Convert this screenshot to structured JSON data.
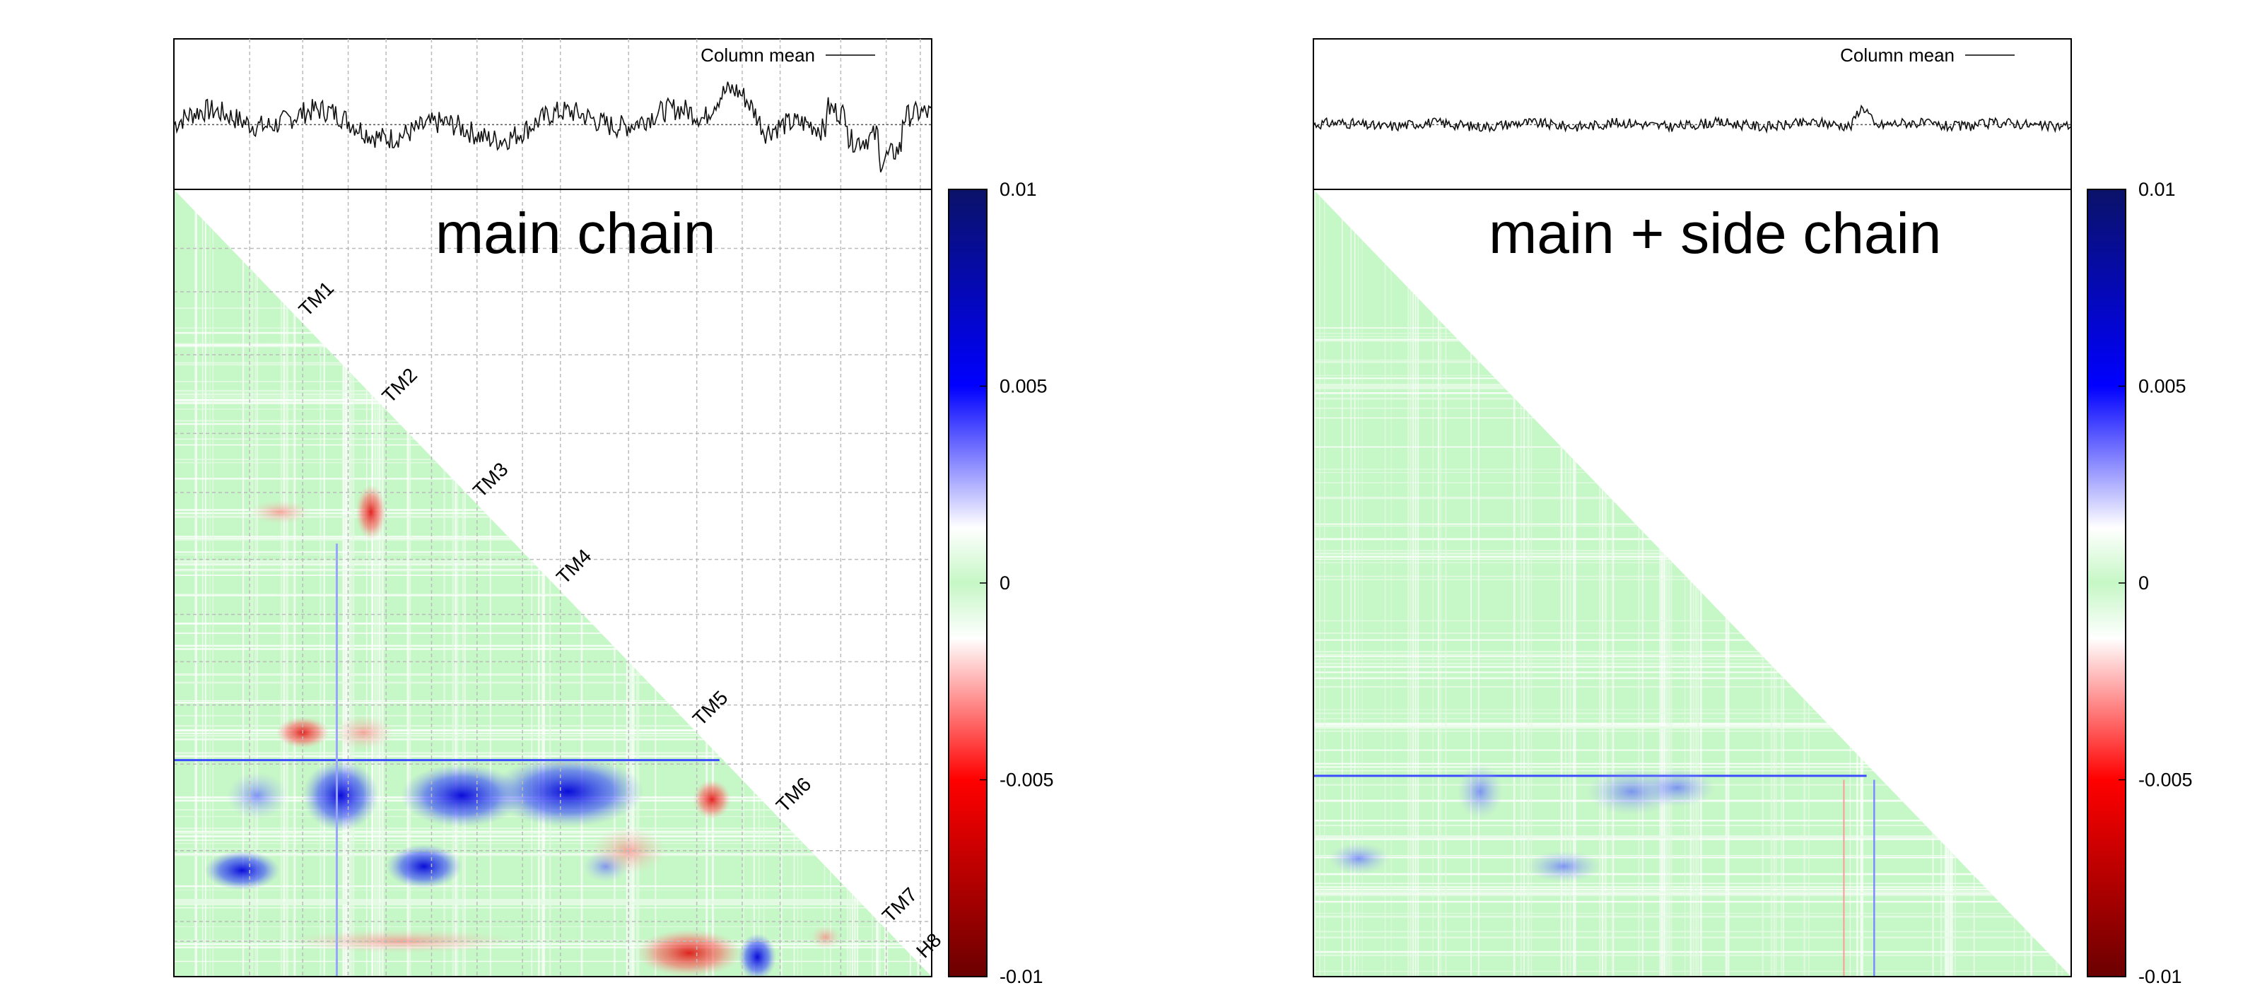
{
  "figure": {
    "panels": [
      {
        "title": "main chain",
        "legend_label": "Column mean",
        "show_helix_labels": true,
        "grid": true
      },
      {
        "title": "main + side chain",
        "legend_label": "Column mean",
        "show_helix_labels": false,
        "grid": false
      }
    ],
    "helix_labels": [
      "TM1",
      "TM2",
      "TM3",
      "TM4",
      "TM5",
      "TM6",
      "TM7",
      "H8"
    ],
    "colorbar": {
      "range": [
        -0.01,
        0.01
      ],
      "tick_labels": [
        "0.01",
        "0.005",
        "0",
        "-0.005",
        "-0.01"
      ],
      "colors": {
        "max": "#0a1268",
        "high": "#0000ff",
        "zero": "#c6f7c6",
        "near_zero_neg": "#ffffff",
        "low": "#ff0000",
        "min": "#6b0000"
      }
    }
  },
  "chart_data": [
    {
      "type": "heatmap",
      "title": "main chain",
      "xlabel": "",
      "ylabel": "",
      "zlim": [
        -0.01,
        0.01
      ],
      "annotations": [
        "TM1",
        "TM2",
        "TM3",
        "TM4",
        "TM5",
        "TM6",
        "TM7",
        "H8"
      ],
      "legend": "Column mean",
      "grid": true,
      "notable_regions": [
        {
          "rows": "TM6",
          "cols": "TM2-TM4",
          "approx_value": 0.008
        },
        {
          "rows": "TM5-TM6 boundary",
          "cols": "TM5",
          "approx_value": -0.006
        },
        {
          "rows": "H8",
          "cols": "TM6-TM7",
          "approx_value": -0.004
        }
      ]
    },
    {
      "type": "heatmap",
      "title": "main + side chain",
      "xlabel": "",
      "ylabel": "",
      "zlim": [
        -0.01,
        0.01
      ],
      "legend": "Column mean",
      "grid": false,
      "notable_regions": [
        {
          "rows": "TM6",
          "cols": "TM2-TM4",
          "approx_value": 0.004
        }
      ]
    }
  ]
}
